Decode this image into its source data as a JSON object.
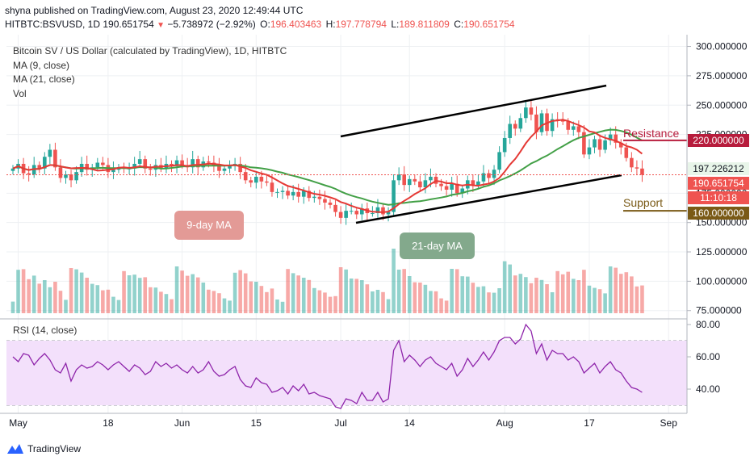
{
  "header": {
    "publish_line": "shyna published on TradingView.com, August 23, 2020 12:49:44 UTC",
    "symbol_line": "HITBTC:BSVUSD, 1D",
    "last_price": "190.651754",
    "change": "−5.738972 (−2.92%)",
    "open_label": "O:",
    "open": "196.403463",
    "high_label": "H:",
    "high": "197.778794",
    "low_label": "L:",
    "low": "189.811809",
    "close_label": "C:",
    "close": "190.651754"
  },
  "legend": {
    "title": "Bitcoin SV / US Dollar (calculated by TradingView), 1D, HITBTC",
    "ma9": "MA (9, close)",
    "ma21": "MA (21, close)",
    "vol": "Vol"
  },
  "rsi_legend": "RSI (14, close)",
  "annotations": {
    "ma9_callout": "9-day MA",
    "ma21_callout": "21-day MA",
    "resistance": "Resistance",
    "support": "Support"
  },
  "price_tags": {
    "resistance": "220.000000",
    "ma21": "197.226212",
    "last": "190.651754",
    "countdown": "11:10:18",
    "support": "160.000000"
  },
  "footer": {
    "brand": "TradingView"
  },
  "colors": {
    "up": "#26a69a",
    "down": "#ef5350",
    "ma9": "#e53935",
    "ma21": "#43a047",
    "rsi_line": "#8e24aa",
    "rsi_band": "#f3e0fb",
    "resistance": "#b71c3c",
    "support": "#7a5a16"
  },
  "chart_data": {
    "type": "candlestick",
    "price_axis": {
      "ticks": [
        "300.000000",
        "275.000000",
        "250.000000",
        "225.000000",
        "175.000000",
        "150.000000",
        "125.000000",
        "100.000000",
        "75.000000"
      ],
      "range": [
        70,
        310
      ]
    },
    "rsi_axis": {
      "ticks": [
        "80.00",
        "60.00",
        "40.00"
      ],
      "band": [
        30,
        70
      ],
      "range": [
        25,
        83
      ]
    },
    "time_axis": {
      "ticks": [
        {
          "label": "May",
          "date": "2020-05-01"
        },
        {
          "label": "18",
          "date": "2020-05-18"
        },
        {
          "label": "Jun",
          "date": "2020-06-01"
        },
        {
          "label": "15",
          "date": "2020-06-15"
        },
        {
          "label": "Jul",
          "date": "2020-07-01"
        },
        {
          "label": "14",
          "date": "2020-07-14"
        },
        {
          "label": "Aug",
          "date": "2020-08-01"
        },
        {
          "label": "17",
          "date": "2020-08-17"
        },
        {
          "label": "Sep",
          "date": "2020-09-01"
        }
      ]
    },
    "first_date": "2020-04-30",
    "close": [
      196,
      200,
      192,
      191,
      199,
      196,
      206,
      212,
      197,
      188,
      191,
      186,
      193,
      200,
      195,
      197,
      201,
      199,
      193,
      195,
      197,
      196,
      196,
      200,
      204,
      196,
      195,
      199,
      196,
      200,
      198,
      203,
      199,
      197,
      204,
      197,
      202,
      201,
      198,
      194,
      196,
      199,
      200,
      193,
      186,
      184,
      189,
      185,
      184,
      176,
      176,
      177,
      173,
      176,
      172,
      177,
      171,
      172,
      170,
      167,
      165,
      159,
      154,
      160,
      160,
      157,
      162,
      158,
      158,
      163,
      157,
      159,
      186,
      191,
      182,
      187,
      185,
      180,
      186,
      189,
      183,
      181,
      178,
      183,
      175,
      179,
      186,
      182,
      185,
      192,
      188,
      195,
      210,
      222,
      234,
      230,
      239,
      248,
      242,
      227,
      243,
      228,
      238,
      237,
      236,
      229,
      232,
      227,
      208,
      214,
      221,
      212,
      220,
      225,
      218,
      214,
      205,
      197,
      196,
      190.65
    ],
    "ma21_end": 197.23,
    "volume_scale": "relative",
    "rsi": [
      60,
      57,
      62,
      61,
      55,
      59,
      62,
      58,
      52,
      50,
      56,
      45,
      52,
      55,
      53,
      54,
      57,
      55,
      52,
      55,
      57,
      54,
      51,
      55,
      53,
      49,
      51,
      57,
      54,
      56,
      53,
      55,
      52,
      50,
      54,
      50,
      52,
      57,
      51,
      48,
      49,
      52,
      54,
      46,
      42,
      41,
      47,
      44,
      43,
      38,
      39,
      41,
      37,
      42,
      39,
      43,
      37,
      38,
      36,
      35,
      34,
      29,
      28,
      34,
      33,
      31,
      38,
      33,
      33,
      38,
      32,
      34,
      64,
      70,
      57,
      61,
      58,
      54,
      58,
      60,
      56,
      54,
      52,
      56,
      48,
      52,
      59,
      54,
      58,
      63,
      58,
      63,
      70,
      72,
      72,
      68,
      71,
      80,
      76,
      62,
      68,
      58,
      64,
      62,
      62,
      58,
      60,
      57,
      50,
      53,
      56,
      50,
      54,
      57,
      52,
      50,
      45,
      41,
      40,
      38
    ]
  }
}
